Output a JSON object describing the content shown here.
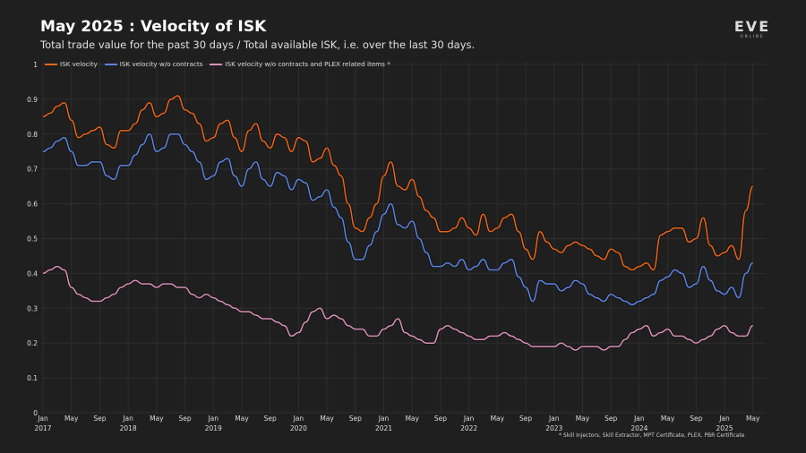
{
  "header": {
    "title": "May 2025 : Velocity of ISK",
    "subtitle": "Total trade value for the past 30 days / Total available ISK, i.e. over the last 30 days.",
    "logo_main": "EVE",
    "logo_sub": "ONLINE"
  },
  "footnote": "* Skill Injectors, Skill Extractor, MPT Certificate, PLEX, PBR Certificate",
  "colors": {
    "background": "#1f1f1f",
    "grid": "#2e2e2e",
    "axis_text": "#dcdcdc",
    "isk_velocity": "#e8651a",
    "isk_velocity_wo_contracts": "#5b84e0",
    "isk_velocity_wo_contracts_plex": "#d98fb8"
  },
  "chart_data": {
    "type": "line",
    "title": "May 2025 : Velocity of ISK",
    "subtitle": "Total trade value for the past 30 days / Total available ISK, i.e. over the last 30 days.",
    "xlabel": "",
    "ylabel": "",
    "ylim": [
      0,
      1
    ],
    "yticks": [
      0,
      0.1,
      0.2,
      0.3,
      0.4,
      0.5,
      0.6,
      0.7,
      0.8,
      0.9,
      1
    ],
    "ytick_labels": [
      "0",
      "0.1",
      "0.2",
      "0.3",
      "0.4",
      "0.5",
      "0.6",
      "0.7",
      "0.8",
      "0.9",
      "1"
    ],
    "grid": true,
    "legend_position": "top-left",
    "x_start": "2017-01",
    "x_step": "1 month",
    "xtick_labels": [
      {
        "month": 0,
        "label": "Jan",
        "year": "2017"
      },
      {
        "month": 4,
        "label": "May",
        "year": ""
      },
      {
        "month": 8,
        "label": "Sep",
        "year": ""
      },
      {
        "month": 12,
        "label": "Jan",
        "year": "2018"
      },
      {
        "month": 16,
        "label": "May",
        "year": ""
      },
      {
        "month": 20,
        "label": "Sep",
        "year": ""
      },
      {
        "month": 24,
        "label": "Jan",
        "year": "2019"
      },
      {
        "month": 28,
        "label": "May",
        "year": ""
      },
      {
        "month": 32,
        "label": "Sep",
        "year": ""
      },
      {
        "month": 36,
        "label": "Jan",
        "year": "2020"
      },
      {
        "month": 40,
        "label": "May",
        "year": ""
      },
      {
        "month": 44,
        "label": "Sep",
        "year": ""
      },
      {
        "month": 48,
        "label": "Jan",
        "year": "2021"
      },
      {
        "month": 52,
        "label": "May",
        "year": ""
      },
      {
        "month": 56,
        "label": "Sep",
        "year": ""
      },
      {
        "month": 60,
        "label": "Jan",
        "year": "2022"
      },
      {
        "month": 64,
        "label": "May",
        "year": ""
      },
      {
        "month": 68,
        "label": "Sep",
        "year": ""
      },
      {
        "month": 72,
        "label": "Jan",
        "year": "2023"
      },
      {
        "month": 76,
        "label": "May",
        "year": ""
      },
      {
        "month": 80,
        "label": "Sep",
        "year": ""
      },
      {
        "month": 84,
        "label": "Jan",
        "year": "2024"
      },
      {
        "month": 88,
        "label": "May",
        "year": ""
      },
      {
        "month": 92,
        "label": "Sep",
        "year": ""
      },
      {
        "month": 96,
        "label": "Jan",
        "year": "2025"
      },
      {
        "month": 100,
        "label": "May",
        "year": ""
      }
    ],
    "series": [
      {
        "name": "ISK velocity",
        "color": "#e8651a",
        "values": [
          0.85,
          0.86,
          0.88,
          0.89,
          0.84,
          0.79,
          0.8,
          0.81,
          0.82,
          0.77,
          0.76,
          0.81,
          0.81,
          0.83,
          0.87,
          0.89,
          0.85,
          0.86,
          0.9,
          0.91,
          0.87,
          0.86,
          0.83,
          0.78,
          0.79,
          0.83,
          0.84,
          0.79,
          0.75,
          0.81,
          0.83,
          0.78,
          0.76,
          0.8,
          0.79,
          0.75,
          0.79,
          0.78,
          0.72,
          0.73,
          0.76,
          0.71,
          0.68,
          0.6,
          0.53,
          0.52,
          0.56,
          0.6,
          0.68,
          0.72,
          0.65,
          0.64,
          0.67,
          0.62,
          0.58,
          0.56,
          0.52,
          0.52,
          0.53,
          0.56,
          0.53,
          0.51,
          0.57,
          0.52,
          0.53,
          0.56,
          0.57,
          0.52,
          0.47,
          0.44,
          0.52,
          0.49,
          0.47,
          0.46,
          0.48,
          0.49,
          0.48,
          0.47,
          0.45,
          0.44,
          0.47,
          0.46,
          0.42,
          0.41,
          0.42,
          0.43,
          0.41,
          0.51,
          0.52,
          0.53,
          0.53,
          0.49,
          0.5,
          0.56,
          0.48,
          0.45,
          0.46,
          0.48,
          0.44,
          0.58,
          0.65
        ]
      },
      {
        "name": "ISK velocity w/o contracts",
        "color": "#5b84e0",
        "values": [
          0.75,
          0.76,
          0.78,
          0.79,
          0.75,
          0.71,
          0.71,
          0.72,
          0.72,
          0.68,
          0.67,
          0.71,
          0.71,
          0.74,
          0.77,
          0.8,
          0.75,
          0.76,
          0.8,
          0.8,
          0.77,
          0.75,
          0.72,
          0.67,
          0.68,
          0.72,
          0.73,
          0.68,
          0.65,
          0.7,
          0.72,
          0.67,
          0.65,
          0.69,
          0.68,
          0.64,
          0.67,
          0.66,
          0.61,
          0.62,
          0.64,
          0.59,
          0.56,
          0.49,
          0.44,
          0.44,
          0.48,
          0.52,
          0.57,
          0.6,
          0.54,
          0.53,
          0.55,
          0.5,
          0.46,
          0.42,
          0.42,
          0.43,
          0.42,
          0.44,
          0.41,
          0.42,
          0.44,
          0.41,
          0.41,
          0.43,
          0.44,
          0.39,
          0.36,
          0.32,
          0.38,
          0.37,
          0.37,
          0.35,
          0.36,
          0.38,
          0.37,
          0.34,
          0.33,
          0.32,
          0.34,
          0.33,
          0.32,
          0.31,
          0.32,
          0.33,
          0.34,
          0.38,
          0.39,
          0.41,
          0.4,
          0.36,
          0.37,
          0.42,
          0.38,
          0.35,
          0.34,
          0.36,
          0.33,
          0.4,
          0.43
        ]
      },
      {
        "name": "ISK velocity w/o contracts and PLEX related items *",
        "color": "#d98fb8",
        "values": [
          0.4,
          0.41,
          0.42,
          0.41,
          0.36,
          0.34,
          0.33,
          0.32,
          0.32,
          0.33,
          0.34,
          0.36,
          0.37,
          0.38,
          0.37,
          0.37,
          0.36,
          0.37,
          0.37,
          0.36,
          0.36,
          0.34,
          0.33,
          0.34,
          0.33,
          0.32,
          0.31,
          0.3,
          0.29,
          0.29,
          0.28,
          0.27,
          0.27,
          0.26,
          0.25,
          0.22,
          0.23,
          0.26,
          0.29,
          0.3,
          0.27,
          0.28,
          0.27,
          0.25,
          0.24,
          0.24,
          0.22,
          0.22,
          0.24,
          0.25,
          0.27,
          0.23,
          0.22,
          0.21,
          0.2,
          0.2,
          0.24,
          0.25,
          0.24,
          0.23,
          0.22,
          0.21,
          0.21,
          0.22,
          0.22,
          0.23,
          0.22,
          0.21,
          0.2,
          0.19,
          0.19,
          0.19,
          0.19,
          0.2,
          0.19,
          0.18,
          0.19,
          0.19,
          0.19,
          0.18,
          0.19,
          0.19,
          0.21,
          0.23,
          0.24,
          0.25,
          0.22,
          0.23,
          0.24,
          0.22,
          0.22,
          0.21,
          0.2,
          0.21,
          0.22,
          0.24,
          0.25,
          0.23,
          0.22,
          0.22,
          0.25
        ]
      }
    ]
  },
  "legend": [
    {
      "label": "ISK velocity",
      "color": "#e8651a"
    },
    {
      "label": "ISK velocity w/o contracts",
      "color": "#5b84e0"
    },
    {
      "label": "ISK velocity w/o contracts and PLEX related items *",
      "color": "#d98fb8"
    }
  ]
}
